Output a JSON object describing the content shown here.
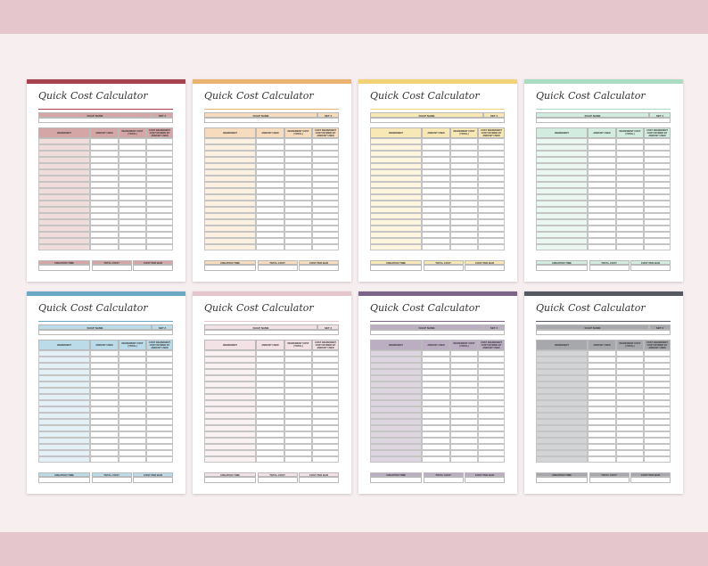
{
  "labels": {
    "title": "Quick Cost Calculator",
    "soap_name": "SOAP NAME",
    "set": "SET #",
    "col_ingredient": "INGREDIENT",
    "col_amount": "AMOUNT USED",
    "col_ingredient_cost": "INGREDIENT COST (TOTAL)",
    "col_cost_used": "COST INGREDIENT COST DIVIDED BY AMOUNT USED",
    "creation_time": "CREATION TIME",
    "total_cost": "TOTAL COST",
    "cost_per_bar": "COST PER BAR"
  },
  "sheets": [
    {
      "accent": "#a8424f",
      "header": "#d4a7a6",
      "tint": "#f0dcda"
    },
    {
      "accent": "#eab36f",
      "header": "#f6dcbd",
      "tint": "#fcf0e0"
    },
    {
      "accent": "#f2d277",
      "header": "#f8e8b6",
      "tint": "#fdf5dd"
    },
    {
      "accent": "#a9dcc2",
      "header": "#d2ede0",
      "tint": "#ebf7f1"
    },
    {
      "accent": "#6aa9c6",
      "header": "#bcdbe8",
      "tint": "#e3f0f6"
    },
    {
      "accent": "#e6c6cd",
      "header": "#f2e2e5",
      "tint": "#faf1f3"
    },
    {
      "accent": "#7c6488",
      "header": "#bcaec2",
      "tint": "#ddd5e0"
    },
    {
      "accent": "#555a62",
      "header": "#a6a8ab",
      "tint": "#d3d4d5"
    }
  ]
}
